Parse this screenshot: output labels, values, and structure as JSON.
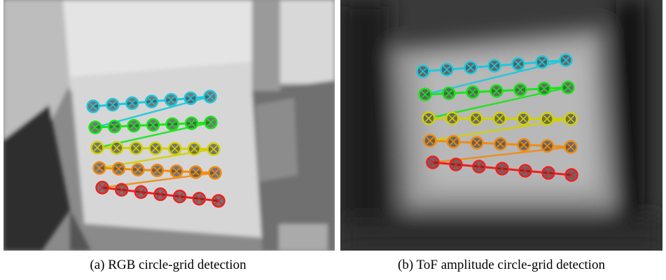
{
  "figure": {
    "panels": [
      {
        "caption": "(a) RGB circle-grid detection"
      },
      {
        "caption": "(b) ToF amplitude circle-grid detection"
      }
    ]
  }
}
